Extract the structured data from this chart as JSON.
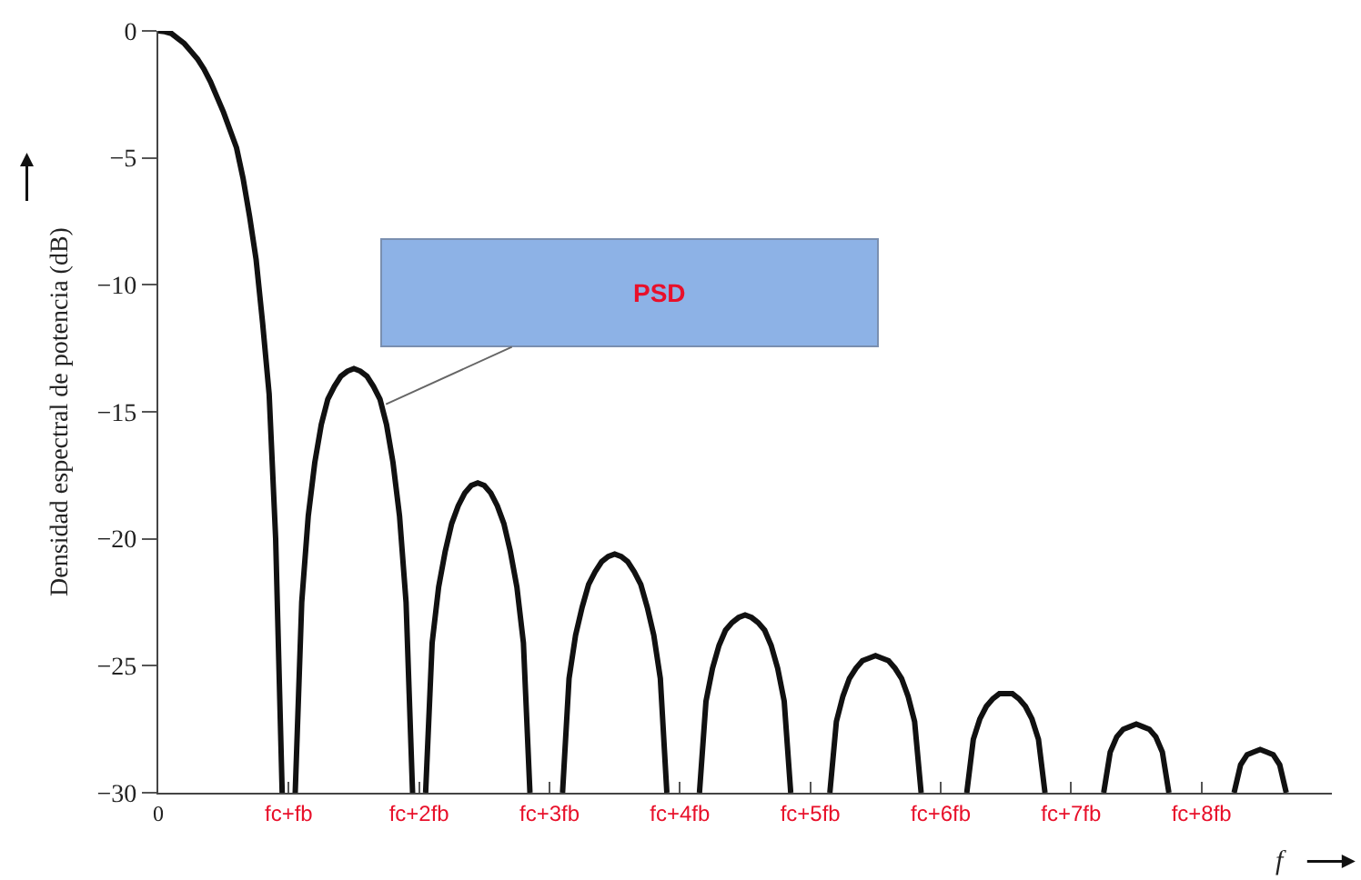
{
  "chart_data": {
    "type": "line",
    "xlabel": "f",
    "ylabel": "Densidad espectral de potencia (dB)",
    "categories": [
      "0",
      null,
      null,
      null,
      null,
      null,
      null,
      null,
      null,
      null,
      null,
      null,
      null,
      null,
      null,
      null,
      null,
      null,
      null,
      null,
      "fc+fb",
      null,
      null,
      null,
      null,
      null,
      null,
      null,
      null,
      null,
      null,
      null,
      null,
      null,
      null,
      null,
      null,
      null,
      null,
      null,
      "fc+2fb",
      null,
      null,
      null,
      null,
      null,
      null,
      null,
      null,
      null,
      null,
      null,
      null,
      null,
      null,
      null,
      null,
      null,
      null,
      null,
      "fc+3fb",
      null,
      null,
      null,
      null,
      null,
      null,
      null,
      null,
      null,
      null,
      null,
      null,
      null,
      null,
      null,
      null,
      null,
      null,
      null,
      "fc+4fb",
      null,
      null,
      null,
      null,
      null,
      null,
      null,
      null,
      null,
      null,
      null,
      null,
      null,
      null,
      null,
      null,
      null,
      null,
      null,
      "fc+5fb",
      null,
      null,
      null,
      null,
      null,
      null,
      null,
      null,
      null,
      null,
      null,
      null,
      null,
      null,
      null,
      null,
      null,
      null,
      null,
      "fc+6fb",
      null,
      null,
      null,
      null,
      null,
      null,
      null,
      null,
      null,
      null,
      null,
      null,
      null,
      null,
      null,
      null,
      null,
      null,
      null,
      "fc+7fb",
      null,
      null,
      null,
      null,
      null,
      null,
      null,
      null,
      null,
      null,
      null,
      null,
      null,
      null,
      null,
      null,
      null,
      null,
      null,
      "fc+8fb",
      null,
      null,
      null,
      null,
      null,
      null,
      null,
      null,
      null,
      null,
      null,
      null,
      null,
      null,
      null,
      null,
      null,
      null,
      null,
      null
    ],
    "series": [
      {
        "color": "#111111",
        "values": [
          0,
          -0.03,
          -0.1,
          -0.3,
          -0.5,
          -0.8,
          -1.1,
          -1.5,
          -2,
          -2.6,
          -3.2,
          -3.9,
          -4.6,
          -5.8,
          -7.3,
          -9,
          -11.5,
          -14.3,
          -20,
          -30,
          null,
          -30,
          -22.5,
          -19.1,
          -17,
          -15.5,
          -14.5,
          -14,
          -13.6,
          -13.4,
          -13.3,
          -13.4,
          -13.6,
          -14,
          -14.5,
          -15.5,
          -17,
          -19.1,
          -22.5,
          -30,
          null,
          -30,
          -24.1,
          -21.9,
          -20.5,
          -19.4,
          -18.7,
          -18.2,
          -17.9,
          -17.8,
          -17.9,
          -18.2,
          -18.7,
          -19.4,
          -20.5,
          -21.9,
          -24.1,
          -30,
          null,
          null,
          null,
          null,
          -30,
          -25.5,
          -23.8,
          -22.7,
          -21.8,
          -21.3,
          -20.9,
          -20.7,
          -20.6,
          -20.7,
          -20.9,
          -21.3,
          -21.8,
          -22.7,
          -23.8,
          -25.5,
          -30,
          null,
          null,
          null,
          null,
          -30,
          -26.4,
          -25.1,
          -24.2,
          -23.6,
          -23.3,
          -23.1,
          -23,
          -23.1,
          -23.3,
          -23.6,
          -24.2,
          -25.1,
          -26.4,
          -30,
          null,
          null,
          null,
          null,
          null,
          -30,
          -27.2,
          -26.2,
          -25.5,
          -25.1,
          -24.8,
          -24.7,
          -24.6,
          -24.7,
          -24.8,
          -25.1,
          -25.5,
          -26.2,
          -27.2,
          -30,
          null,
          null,
          null,
          null,
          null,
          null,
          -30,
          -27.9,
          -27.1,
          -26.6,
          -26.3,
          -26.1,
          -26.1,
          -26.1,
          -26.3,
          -26.6,
          -27.1,
          -27.9,
          -30,
          null,
          null,
          null,
          null,
          null,
          null,
          null,
          null,
          -30,
          -28.4,
          -27.8,
          -27.5,
          -27.4,
          -27.3,
          -27.4,
          -27.5,
          -27.8,
          -28.4,
          -30,
          null,
          null,
          null,
          null,
          null,
          null,
          null,
          null,
          null,
          -30,
          -28.9,
          -28.5,
          -28.4,
          -28.3,
          -28.4,
          -28.5,
          -28.9,
          -30,
          null,
          null,
          null,
          null,
          null,
          null,
          null
        ]
      }
    ],
    "ylim": [
      -30,
      0
    ],
    "yticks": [
      0,
      -5,
      -10,
      -15,
      -20,
      -25,
      -30
    ],
    "annotations": [
      "PSD"
    ],
    "marker": "none",
    "line_style": "solid"
  }
}
